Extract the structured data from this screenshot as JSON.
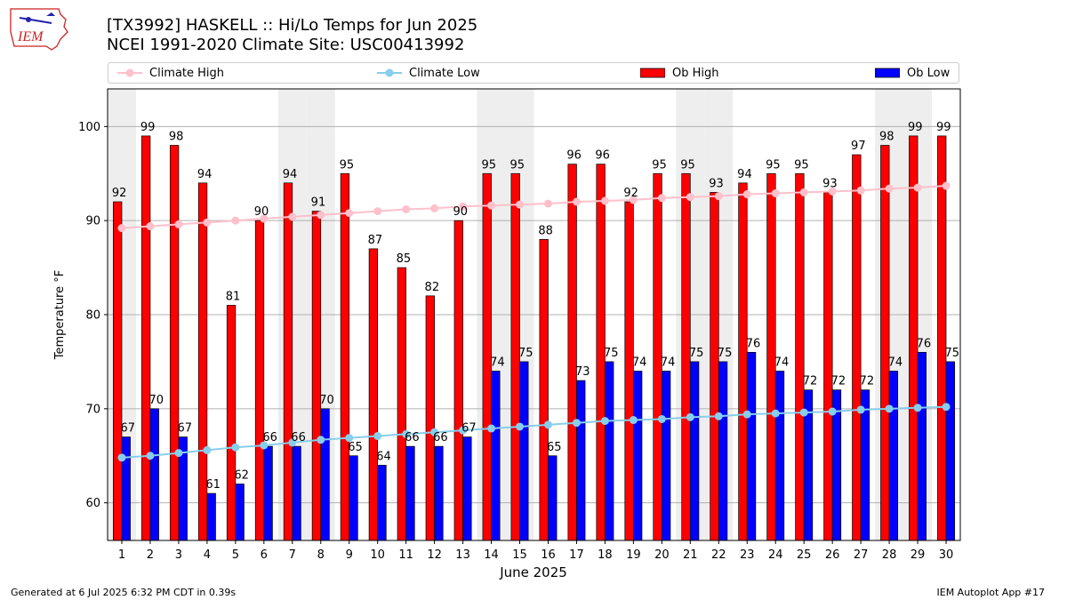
{
  "header": {
    "title_line1": "[TX3992] HASKELL :: Hi/Lo Temps for Jun 2025",
    "title_line2": "NCEI 1991-2020 Climate Site: USC00413992"
  },
  "logo": {
    "text": "IEM",
    "color": "#cc2222"
  },
  "footer": {
    "generated": "Generated at 6 Jul 2025 6:32 PM CDT in 0.39s",
    "app": "IEM Autoplot App #17"
  },
  "chart_data": {
    "type": "bar",
    "xlabel": "June 2025",
    "ylabel": "Temperature °F",
    "ylim": [
      56,
      104
    ],
    "yticks": [
      60,
      70,
      80,
      90,
      100
    ],
    "grid": true,
    "legend_position": "top",
    "categories": [
      "1",
      "2",
      "3",
      "4",
      "5",
      "6",
      "7",
      "8",
      "9",
      "10",
      "11",
      "12",
      "13",
      "14",
      "15",
      "16",
      "17",
      "18",
      "19",
      "20",
      "21",
      "22",
      "23",
      "24",
      "25",
      "26",
      "27",
      "28",
      "29",
      "30"
    ],
    "weekend_shading_days": [
      1,
      7,
      8,
      14,
      15,
      21,
      22,
      28,
      29
    ],
    "series": [
      {
        "name": "Ob High",
        "kind": "bar",
        "color": "#ff0000",
        "values": [
          92,
          99,
          98,
          94,
          81,
          90,
          94,
          91,
          95,
          87,
          85,
          82,
          90,
          95,
          95,
          88,
          96,
          96,
          92,
          95,
          95,
          93,
          94,
          95,
          95,
          93,
          97,
          98,
          99,
          99
        ]
      },
      {
        "name": "Ob Low",
        "kind": "bar",
        "color": "#0000ff",
        "values": [
          67,
          70,
          67,
          61,
          62,
          66,
          66,
          70,
          65,
          64,
          66,
          66,
          67,
          74,
          75,
          65,
          73,
          75,
          74,
          74,
          75,
          75,
          76,
          74,
          72,
          72,
          72,
          74,
          76,
          75
        ]
      },
      {
        "name": "Climate High",
        "kind": "line",
        "color": "#ffc0cb",
        "values": [
          89.2,
          89.4,
          89.6,
          89.8,
          90.0,
          90.2,
          90.4,
          90.6,
          90.8,
          91.0,
          91.2,
          91.3,
          91.5,
          91.6,
          91.7,
          91.8,
          92.0,
          92.1,
          92.2,
          92.4,
          92.5,
          92.6,
          92.8,
          92.9,
          93.0,
          93.1,
          93.2,
          93.4,
          93.5,
          93.7
        ]
      },
      {
        "name": "Climate Low",
        "kind": "line",
        "color": "#87ceeb",
        "values": [
          64.8,
          65.0,
          65.3,
          65.6,
          65.9,
          66.1,
          66.4,
          66.7,
          66.9,
          67.1,
          67.3,
          67.5,
          67.7,
          67.9,
          68.1,
          68.3,
          68.5,
          68.7,
          68.8,
          68.9,
          69.1,
          69.2,
          69.4,
          69.5,
          69.6,
          69.7,
          69.9,
          70.0,
          70.1,
          70.2
        ]
      }
    ]
  },
  "legend": {
    "climate_high": "Climate High",
    "climate_low": "Climate Low",
    "ob_high": "Ob High",
    "ob_low": "Ob Low"
  }
}
